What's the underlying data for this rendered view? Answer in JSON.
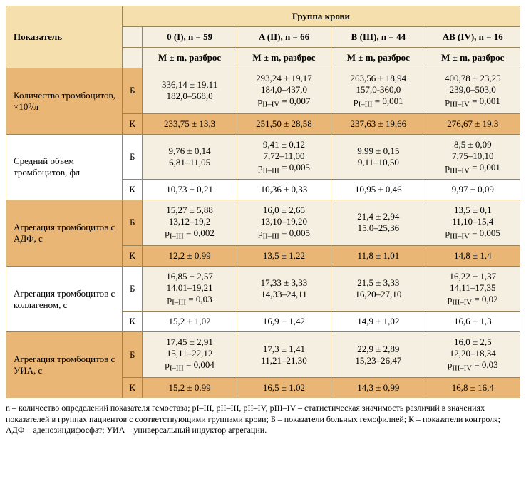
{
  "header": {
    "indicator": "Показатель",
    "group_title": "Группа крови",
    "groups": [
      "0 (I), n = 59",
      "A (II), n = 66",
      "B (III), n = 44",
      "AB (IV), n = 16"
    ],
    "subheader": "M ± m, разброс"
  },
  "rows": [
    {
      "name": "Количество тромбоцитов, ×10⁹/л",
      "band": "orange",
      "b": [
        "336,14 ± 19,11\n182,0–568,0",
        "293,24 ± 19,17\n184,0–437,0\npII–IV = 0,007",
        "263,56 ± 18,94\n157,0-360,0\npI–III = 0,001",
        "400,78 ± 23,25\n239,0–503,0\npIII–IV = 0,001"
      ],
      "k": [
        "233,75 ± 13,3",
        "251,50 ± 28,58",
        "237,63 ± 19,66",
        "276,67 ± 19,3"
      ]
    },
    {
      "name": "Средний объем тромбоцитов, фл",
      "band": "white",
      "b": [
        "9,76 ± 0,14\n6,81–11,05",
        "9,41 ± 0,12\n7,72–11,00\npII–III = 0,005",
        "9,99 ± 0,15\n9,11–10,50",
        "8,5 ± 0,09\n7,75–10,10\npIII–IV = 0,001"
      ],
      "k": [
        "10,73 ± 0,21",
        "10,36 ± 0,33",
        "10,95 ± 0,46",
        "9,97 ± 0,09"
      ]
    },
    {
      "name": "Агрегация тромбоцитов с АДФ, с",
      "band": "orange",
      "b": [
        "15,27 ± 5,88\n13,12–19,2\npI–III = 0,002",
        "16,0 ± 2,65\n13,10–19,20\npII–III = 0,005",
        "21,4 ± 2,94\n15,0–25,36",
        "13,5 ± 0,1\n11,10–15,4\npIII–IV = 0,005"
      ],
      "k": [
        "12,2 ± 0,99",
        "13,5 ± 1,22",
        "11,8 ± 1,01",
        "14,8 ± 1,4"
      ]
    },
    {
      "name": "Агрегация тромбоцитов с коллагеном, с",
      "band": "white",
      "b": [
        "16,85 ± 2,57\n14,01–19,21\npI–III = 0,03",
        "17,33 ± 3,33\n14,33–24,11",
        "21,5 ± 3,33\n16,20–27,10",
        "16,22 ± 1,37\n14,11–17,35\npIII–IV = 0,02"
      ],
      "k": [
        "15,2 ± 1,02",
        "16,9 ± 1,42",
        "14,9 ± 1,02",
        "16,6 ± 1,3"
      ]
    },
    {
      "name": "Агрегация тромбоцитов с УИА, с",
      "band": "orange",
      "b": [
        "17,45 ± 2,91\n15,11–22,12\npI–III = 0,004",
        "17,3 ± 1,41\n11,21–21,30",
        "22,9 ± 2,89\n15,23–26,47",
        "16,0 ± 2,5\n12,20–18,34\npIII–IV = 0,03"
      ],
      "k": [
        "15,2 ± 0,99",
        "16,5 ± 1,02",
        "14,3 ± 0,99",
        "16,8 ± 16,4"
      ]
    }
  ],
  "labels": {
    "b": "Б",
    "k": "К"
  },
  "footnote": "n – количество определений показателя гемостаза; pI–III, pII–III, pII–IV, pIII–IV – статистическая значимость различий в значениях показателей в группах пациентов с соответствующими группами крови; Б – показатели больных гемофилией; К – показатели контроля; АДФ – аденозиндифосфат; УИА – универсальный индуктор агрегации."
}
